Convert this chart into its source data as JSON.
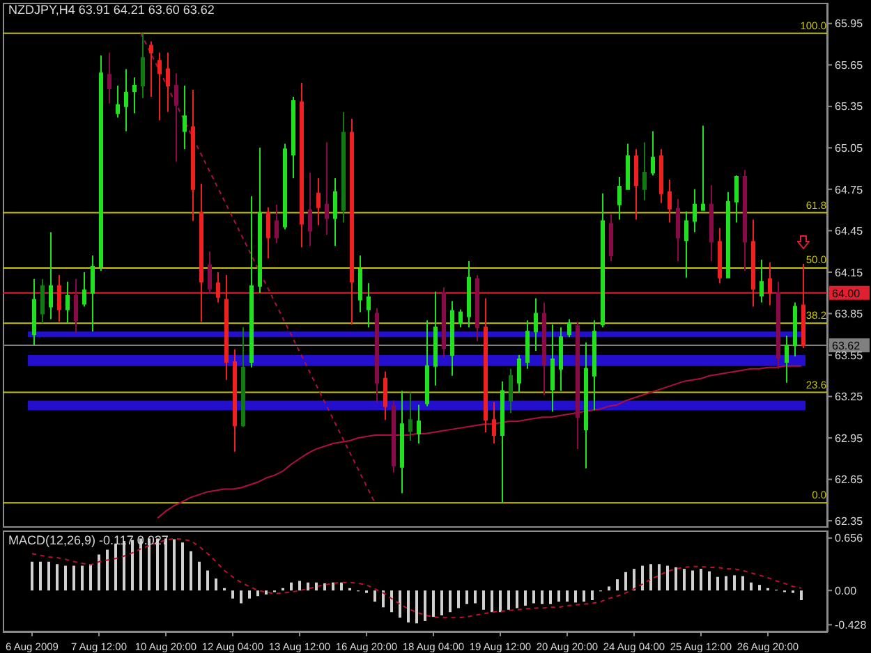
{
  "chart_data": [
    {
      "type": "candlestick",
      "title": "NZDJPY,H4 63.91 64.21 63.60 63.62",
      "categories": [
        null,
        null,
        null,
        null,
        null,
        null,
        null,
        null,
        null,
        null,
        null,
        null,
        null,
        null,
        null,
        null,
        null,
        null,
        null,
        null,
        null,
        null,
        null,
        null,
        null,
        null,
        null,
        null,
        null,
        null,
        null,
        null,
        null,
        null,
        null,
        null,
        null,
        null,
        null,
        null,
        null,
        null,
        null,
        null,
        null,
        null,
        null,
        null,
        null,
        null,
        null,
        null,
        null,
        null,
        null,
        null,
        null,
        null,
        null,
        null,
        null,
        null,
        null,
        null,
        null,
        null,
        null,
        null,
        null,
        null,
        null,
        null,
        null,
        null,
        null,
        null,
        null,
        null,
        null,
        null,
        null,
        null,
        null,
        null,
        null,
        null,
        null,
        null,
        null,
        null,
        null,
        null,
        null
      ],
      "ohlc": [
        [
          63.7,
          64.1,
          63.62,
          63.95
        ],
        [
          63.85,
          64.1,
          63.78,
          64.05
        ],
        [
          63.9,
          64.44,
          63.81,
          64.05
        ],
        [
          64.05,
          64.13,
          63.79,
          63.88
        ],
        [
          63.88,
          64.08,
          63.78,
          63.98
        ],
        [
          63.98,
          64.1,
          63.71,
          63.8
        ],
        [
          63.92,
          64.15,
          63.9,
          64.02
        ],
        [
          64.0,
          64.27,
          63.72,
          64.19
        ],
        [
          64.19,
          65.72,
          64.16,
          65.59
        ],
        [
          65.58,
          65.74,
          65.37,
          65.48
        ],
        [
          65.3,
          65.5,
          65.27,
          65.36
        ],
        [
          65.35,
          65.62,
          65.17,
          65.45
        ],
        [
          65.46,
          65.56,
          65.3,
          65.5
        ],
        [
          65.5,
          65.88,
          65.41,
          65.7
        ],
        [
          65.79,
          65.82,
          65.42,
          65.74
        ],
        [
          65.68,
          65.74,
          65.25,
          65.59
        ],
        [
          65.62,
          65.74,
          65.31,
          65.5
        ],
        [
          65.5,
          65.59,
          64.95,
          65.36
        ],
        [
          65.17,
          65.5,
          65.04,
          65.28
        ],
        [
          65.2,
          65.47,
          64.52,
          64.75
        ],
        [
          64.58,
          64.79,
          63.79,
          64.08
        ],
        [
          64.2,
          64.3,
          64.0,
          64.03
        ],
        [
          64.07,
          64.15,
          63.93,
          63.97
        ],
        [
          63.95,
          64.13,
          63.37,
          63.5
        ],
        [
          63.5,
          63.59,
          62.85,
          63.04
        ],
        [
          63.04,
          63.75,
          63.03,
          63.46
        ],
        [
          63.5,
          64.7,
          63.46,
          64.05
        ],
        [
          64.05,
          65.05,
          64.0,
          64.58
        ],
        [
          64.58,
          64.62,
          64.25,
          64.4
        ],
        [
          64.52,
          64.64,
          64.36,
          64.4
        ],
        [
          64.48,
          65.08,
          64.46,
          65.04
        ],
        [
          65.0,
          65.42,
          64.83,
          65.39
        ],
        [
          65.38,
          65.52,
          64.33,
          64.5
        ],
        [
          64.6,
          64.87,
          64.34,
          64.45
        ],
        [
          64.72,
          64.83,
          64.49,
          64.62
        ],
        [
          64.64,
          65.09,
          64.42,
          64.54
        ],
        [
          64.54,
          64.83,
          64.34,
          64.73
        ],
        [
          64.6,
          65.31,
          64.51,
          65.16
        ],
        [
          65.16,
          65.26,
          63.77,
          64.08
        ],
        [
          63.95,
          64.27,
          63.86,
          64.17
        ],
        [
          63.88,
          64.07,
          63.75,
          63.97
        ],
        [
          63.85,
          63.89,
          63.21,
          63.35
        ],
        [
          63.38,
          63.43,
          63.08,
          63.18
        ],
        [
          63.18,
          63.22,
          62.7,
          62.75
        ],
        [
          62.74,
          63.29,
          62.55,
          63.05
        ],
        [
          63.0,
          63.28,
          62.93,
          63.08
        ],
        [
          62.98,
          63.19,
          62.91,
          63.07
        ],
        [
          63.2,
          63.8,
          63.18,
          63.47
        ],
        [
          63.47,
          64.01,
          63.33,
          63.75
        ],
        [
          64.0,
          64.04,
          63.53,
          63.6
        ],
        [
          63.55,
          63.94,
          63.4,
          63.87
        ],
        [
          63.78,
          63.88,
          63.75,
          63.86
        ],
        [
          63.83,
          64.23,
          63.75,
          64.11
        ],
        [
          64.1,
          64.13,
          63.65,
          63.75
        ],
        [
          63.75,
          63.96,
          62.99,
          63.08
        ],
        [
          63.08,
          63.21,
          62.91,
          62.97
        ],
        [
          62.97,
          63.36,
          62.48,
          63.29
        ],
        [
          63.22,
          63.45,
          63.13,
          63.4
        ],
        [
          63.35,
          63.55,
          63.28,
          63.52
        ],
        [
          63.5,
          63.8,
          63.45,
          63.72
        ],
        [
          63.72,
          63.96,
          63.58,
          63.85
        ],
        [
          63.85,
          63.93,
          63.26,
          63.48
        ],
        [
          63.3,
          63.77,
          63.14,
          63.52
        ],
        [
          63.45,
          63.75,
          63.29,
          63.68
        ],
        [
          63.7,
          63.81,
          63.68,
          63.78
        ],
        [
          63.76,
          63.79,
          62.87,
          63.1
        ],
        [
          63.01,
          63.64,
          62.73,
          63.45
        ],
        [
          63.4,
          63.8,
          63.15,
          63.72
        ],
        [
          63.77,
          64.72,
          63.75,
          64.52
        ],
        [
          64.5,
          64.57,
          64.23,
          64.27
        ],
        [
          64.64,
          64.84,
          64.53,
          64.77
        ],
        [
          64.75,
          65.08,
          64.75,
          64.99
        ],
        [
          64.99,
          65.04,
          64.53,
          64.78
        ],
        [
          64.75,
          65.09,
          64.67,
          64.87
        ],
        [
          64.87,
          65.17,
          64.85,
          64.98
        ],
        [
          64.99,
          65.04,
          64.65,
          64.72
        ],
        [
          64.73,
          64.82,
          64.51,
          64.61
        ],
        [
          64.61,
          64.68,
          64.23,
          64.4
        ],
        [
          64.38,
          64.59,
          64.11,
          64.52
        ],
        [
          64.52,
          64.75,
          64.44,
          64.64
        ],
        [
          64.6,
          65.21,
          64.6,
          64.64
        ],
        [
          64.64,
          64.78,
          64.23,
          64.37
        ],
        [
          64.37,
          64.47,
          64.07,
          64.11
        ],
        [
          64.11,
          64.73,
          64.11,
          64.66
        ],
        [
          64.66,
          64.85,
          64.51,
          64.84
        ],
        [
          64.84,
          64.89,
          64.16,
          64.37
        ],
        [
          64.37,
          64.53,
          63.9,
          64.03
        ],
        [
          63.98,
          64.24,
          63.93,
          64.08
        ],
        [
          64.1,
          64.22,
          63.91,
          64.0
        ],
        [
          64.0,
          64.08,
          63.45,
          63.53
        ],
        [
          63.5,
          63.69,
          63.35,
          63.62
        ],
        [
          63.62,
          63.93,
          63.54,
          63.9
        ],
        [
          63.91,
          64.21,
          63.6,
          63.62
        ]
      ],
      "colors": [
        "#20e020",
        "#127a12",
        "#20e020",
        "#f02020",
        "#20e020",
        "#8a0a48",
        "#20e020",
        "#20e020",
        "#20e020",
        "#8a0a48",
        "#20e020",
        "#20e020",
        "#20e020",
        "#127a12",
        "#f02020",
        "#f02020",
        "#f02020",
        "#8a0a48",
        "#20e020",
        "#f02020",
        "#f02020",
        "#8a0a48",
        "#f02020",
        "#f02020",
        "#f02020",
        "#127a12",
        "#20e020",
        "#20e020",
        "#f02020",
        "#8a0a48",
        "#20e020",
        "#20e020",
        "#f02020",
        "#8a0a48",
        "#f02020",
        "#8a0a48",
        "#20e020",
        "#127a12",
        "#f02020",
        "#20e020",
        "#20e020",
        "#8a0a48",
        "#f02020",
        "#8a0a48",
        "#20e020",
        "#127a12",
        "#20e020",
        "#20e020",
        "#20e020",
        "#8a0a48",
        "#20e020",
        "#20e020",
        "#20e020",
        "#8a0a48",
        "#f02020",
        "#f02020",
        "#20e020",
        "#127a12",
        "#20e020",
        "#20e020",
        "#20e020",
        "#8a0a48",
        "#20e020",
        "#20e020",
        "#20e020",
        "#8a0a48",
        "#20e020",
        "#20e020",
        "#20e020",
        "#8a0a48",
        "#20e020",
        "#20e020",
        "#f02020",
        "#127a12",
        "#20e020",
        "#f02020",
        "#f02020",
        "#8a0a48",
        "#20e020",
        "#20e020",
        "#20e020",
        "#8a0a48",
        "#f02020",
        "#20e020",
        "#20e020",
        "#8a0a48",
        "#f02020",
        "#20e020",
        "#f02020",
        "#8a0a48",
        "#20e020",
        "#20e020",
        "#f02020"
      ],
      "series": [
        {
          "type": "line",
          "color": "#b01040",
          "values": [
            null,
            null,
            null,
            null,
            null,
            null,
            null,
            null,
            null,
            null,
            null,
            null,
            null,
            null,
            null,
            62.37,
            62.42,
            62.46,
            62.49,
            62.52,
            62.54,
            62.56,
            62.57,
            62.58,
            62.58,
            62.59,
            62.61,
            62.63,
            62.66,
            62.68,
            62.71,
            62.76,
            62.8,
            62.84,
            62.87,
            62.89,
            62.91,
            62.92,
            62.93,
            62.95,
            62.96,
            62.97,
            62.97,
            62.97,
            62.97,
            62.97,
            62.98,
            62.98,
            62.99,
            63.0,
            63.01,
            63.02,
            63.03,
            63.04,
            63.05,
            63.05,
            63.06,
            63.07,
            63.07,
            63.08,
            63.09,
            63.1,
            63.1,
            63.11,
            63.12,
            63.13,
            63.14,
            63.15,
            63.16,
            63.18,
            63.19,
            63.22,
            63.24,
            63.26,
            63.28,
            63.3,
            63.32,
            63.34,
            63.36,
            63.37,
            63.38,
            63.4,
            63.41,
            63.42,
            63.43,
            63.44,
            63.45,
            63.45,
            63.46,
            63.46,
            63.47,
            63.47,
            63.47
          ]
        },
        {
          "type": "line",
          "color": "#b01040",
          "line_style": "dashed",
          "values": [
            null,
            null,
            null,
            null,
            null,
            null,
            null,
            null,
            null,
            null,
            null,
            null,
            null,
            65.88,
            null,
            null,
            null,
            null,
            null,
            null,
            null,
            null,
            null,
            null,
            null,
            null,
            null,
            null,
            null,
            null,
            null,
            null,
            null,
            null,
            null,
            null,
            null,
            null,
            null,
            null,
            null,
            62.48,
            null,
            null,
            null,
            null,
            null,
            null,
            null,
            null,
            null,
            null,
            null,
            null,
            null,
            null,
            null,
            null,
            null,
            null,
            null,
            null,
            null,
            null,
            null,
            null,
            null,
            null,
            null,
            null,
            null,
            null,
            null,
            null,
            null,
            null,
            null,
            null,
            null,
            null,
            null,
            null,
            null,
            null,
            null,
            null,
            null,
            null,
            null,
            null,
            null,
            null,
            null
          ]
        }
      ],
      "ylim": [
        62.3,
        66.1
      ],
      "yticks": [
        62.35,
        62.65,
        62.95,
        63.25,
        63.55,
        63.85,
        64.15,
        64.45,
        64.75,
        65.05,
        65.35,
        65.65,
        65.95
      ],
      "tick_labels": "y",
      "ref_lines": [
        {
          "axis": "y",
          "value": 65.88,
          "color": "#c8c400"
        },
        {
          "axis": "y",
          "value": 64.58,
          "color": "#c8c400"
        },
        {
          "axis": "y",
          "value": 64.18,
          "color": "#c8c400"
        },
        {
          "axis": "y",
          "value": 63.78,
          "color": "#c8c400"
        },
        {
          "axis": "y",
          "value": 63.28,
          "color": "#c8c400"
        },
        {
          "axis": "y",
          "value": 62.48,
          "color": "#c8c400"
        },
        {
          "axis": "y",
          "value": 64,
          "label": "64.00",
          "color": "#e02030"
        },
        {
          "axis": "y",
          "value": 63.62,
          "label": "63.62",
          "color": "#808080"
        }
      ],
      "annotations": [
        {
          "text": "100.0",
          "y": 65.88
        },
        {
          "text": "61.8",
          "y": 64.58
        },
        {
          "text": "50.0",
          "y": 64.18
        },
        {
          "text": "38.2",
          "y": 63.78
        },
        {
          "text": "23.6",
          "y": 63.28
        },
        {
          "text": "0.0",
          "y": 62.48
        }
      ],
      "bands": [
        {
          "axis": "y",
          "from": 63.68,
          "to": 63.72,
          "color": "#2410cc"
        },
        {
          "axis": "y",
          "from": 63.47,
          "to": 63.55,
          "color": "#2410cc"
        },
        {
          "axis": "y",
          "from": 63.15,
          "to": 63.22,
          "color": "#2410cc"
        }
      ]
    },
    {
      "type": "bar",
      "title": "MACD(12,26,9) -0.117 0.027",
      "categories": [
        "6 Aug 2009",
        null,
        null,
        null,
        null,
        null,
        null,
        null,
        "7 Aug 12:00",
        null,
        null,
        null,
        null,
        null,
        null,
        null,
        "10 Aug 20:00",
        null,
        null,
        null,
        null,
        null,
        null,
        null,
        "12 Aug 04:00",
        null,
        null,
        null,
        null,
        null,
        null,
        null,
        "13 Aug 12:00",
        null,
        null,
        null,
        null,
        null,
        null,
        null,
        "16 Aug 20:00",
        null,
        null,
        null,
        null,
        null,
        null,
        null,
        "18 Aug 04:00",
        null,
        null,
        null,
        null,
        null,
        null,
        null,
        "19 Aug 12:00",
        null,
        null,
        null,
        null,
        null,
        null,
        null,
        "20 Aug 20:00",
        null,
        null,
        null,
        null,
        null,
        null,
        null,
        "24 Aug 04:00",
        null,
        null,
        null,
        null,
        null,
        null,
        null,
        "25 Aug 12:00",
        null,
        null,
        null,
        null,
        null,
        null,
        null,
        "26 Aug 20:00",
        null,
        null,
        null,
        null
      ],
      "series": [
        {
          "color": "#d0d0d0",
          "values": [
            0.36,
            0.36,
            0.36,
            0.33,
            0.31,
            0.31,
            0.31,
            0.33,
            0.45,
            0.51,
            0.58,
            0.62,
            0.63,
            0.65,
            0.65,
            0.65,
            0.65,
            0.64,
            0.6,
            0.49,
            0.36,
            0.25,
            0.15,
            0.03,
            -0.1,
            -0.16,
            -0.1,
            -0.07,
            -0.05,
            -0.02,
            0.03,
            0.1,
            0.12,
            0.1,
            0.1,
            0.09,
            0.1,
            0.1,
            0.03,
            -0.01,
            -0.03,
            -0.14,
            -0.21,
            -0.27,
            -0.34,
            -0.4,
            -0.41,
            -0.38,
            -0.33,
            -0.31,
            -0.27,
            -0.22,
            -0.17,
            -0.16,
            -0.24,
            -0.27,
            -0.27,
            -0.24,
            -0.22,
            -0.19,
            -0.16,
            -0.17,
            -0.17,
            -0.14,
            -0.14,
            -0.15,
            -0.14,
            -0.12,
            -0.01,
            0.05,
            0.14,
            0.23,
            0.27,
            0.31,
            0.33,
            0.33,
            0.31,
            0.29,
            0.27,
            0.25,
            0.27,
            0.24,
            0.17,
            0.18,
            0.19,
            0.18,
            0.1,
            0.07,
            0.03,
            0.01,
            -0.02,
            -0.03,
            -0.12
          ]
        },
        {
          "type": "line",
          "color": "#c01030",
          "line_style": "dashed",
          "values": [
            0.46,
            0.44,
            0.42,
            0.41,
            0.39,
            0.36,
            0.34,
            0.32,
            0.36,
            0.38,
            0.4,
            0.43,
            0.47,
            0.52,
            0.56,
            0.6,
            0.63,
            0.65,
            0.64,
            0.62,
            0.55,
            0.46,
            0.36,
            0.25,
            0.17,
            0.1,
            0.05,
            0.0,
            -0.02,
            -0.04,
            -0.03,
            -0.02,
            0.0,
            0.02,
            0.05,
            0.07,
            0.09,
            0.1,
            0.1,
            0.09,
            0.07,
            0.02,
            -0.03,
            -0.1,
            -0.17,
            -0.23,
            -0.27,
            -0.31,
            -0.33,
            -0.34,
            -0.34,
            -0.34,
            -0.33,
            -0.31,
            -0.29,
            -0.27,
            -0.26,
            -0.25,
            -0.24,
            -0.23,
            -0.22,
            -0.22,
            -0.21,
            -0.21,
            -0.19,
            -0.18,
            -0.17,
            -0.16,
            -0.14,
            -0.1,
            -0.07,
            -0.03,
            0.02,
            0.08,
            0.14,
            0.19,
            0.24,
            0.27,
            0.29,
            0.3,
            0.3,
            0.29,
            0.29,
            0.27,
            0.27,
            0.25,
            0.22,
            0.19,
            0.16,
            0.12,
            0.09,
            0.05,
            0.03
          ]
        }
      ],
      "ylim": [
        -0.52,
        0.75
      ],
      "yticks": [
        0.656,
        {
          "value": 0,
          "label": "0.00"
        },
        -0.428
      ]
    }
  ]
}
